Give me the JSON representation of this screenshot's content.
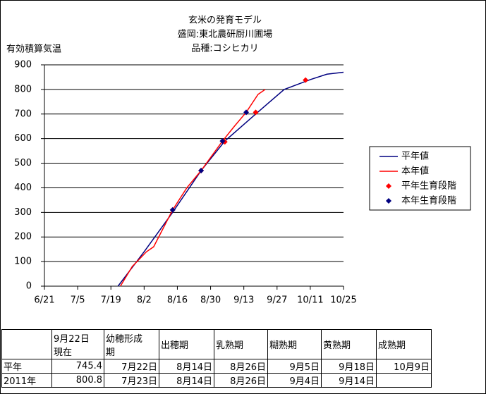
{
  "chart_data": {
    "type": "line",
    "title": [
      "玄米の発育モデル",
      "盛岡:東北農研厨川圃場",
      "品種:コシヒカリ"
    ],
    "ylabel": "有効積算気温",
    "xlim": [
      "6/21",
      "10/25"
    ],
    "xticks": [
      "6/21",
      "7/5",
      "7/19",
      "8/2",
      "8/16",
      "8/30",
      "9/13",
      "9/27",
      "10/11",
      "10/25"
    ],
    "ylim": [
      0,
      900
    ],
    "yticks": [
      0,
      100,
      200,
      300,
      400,
      500,
      600,
      700,
      800,
      900
    ],
    "grid": true,
    "legend": "right",
    "series": [
      {
        "name": "平年値",
        "kind": "line",
        "color": "#000080",
        "x": [
          "7/22",
          "8/2",
          "8/14",
          "8/26",
          "9/5",
          "9/18",
          "9/30",
          "10/11",
          "10/18",
          "10/25"
        ],
        "values": [
          0,
          140,
          300,
          470,
          590,
          700,
          800,
          840,
          862,
          870
        ]
      },
      {
        "name": "本年値",
        "kind": "line",
        "color": "#ff0000",
        "x": [
          "7/23",
          "7/28",
          "8/3",
          "8/6",
          "8/14",
          "8/20",
          "8/26",
          "9/4",
          "9/9",
          "9/14",
          "9/19",
          "9/22"
        ],
        "values": [
          0,
          80,
          140,
          160,
          310,
          400,
          470,
          590,
          650,
          707,
          780,
          800
        ]
      },
      {
        "name": "平年生育段階",
        "kind": "marker",
        "color": "#ff0000",
        "x": [
          "8/14",
          "8/26",
          "9/5",
          "9/18",
          "10/9"
        ],
        "values": [
          310,
          470,
          587,
          707,
          838
        ]
      },
      {
        "name": "本年生育段階",
        "kind": "marker",
        "color": "#000080",
        "x": [
          "8/14",
          "8/26",
          "9/4",
          "9/14"
        ],
        "values": [
          310,
          470,
          590,
          707
        ]
      }
    ]
  },
  "table": {
    "header": [
      null,
      "9月22日\n現在",
      "幼穂形成\n期",
      "出穂期",
      "乳熟期",
      "糊熟期",
      "黄熟期",
      "成熟期"
    ],
    "rows": [
      [
        "平年",
        "745.4",
        "7月22日",
        "8月14日",
        "8月26日",
        "9月5日",
        "9月18日",
        "10月9日"
      ],
      [
        "2011年",
        "800.8",
        "7月23日",
        "8月14日",
        "8月26日",
        "9月4日",
        "9月14日",
        null
      ]
    ]
  }
}
